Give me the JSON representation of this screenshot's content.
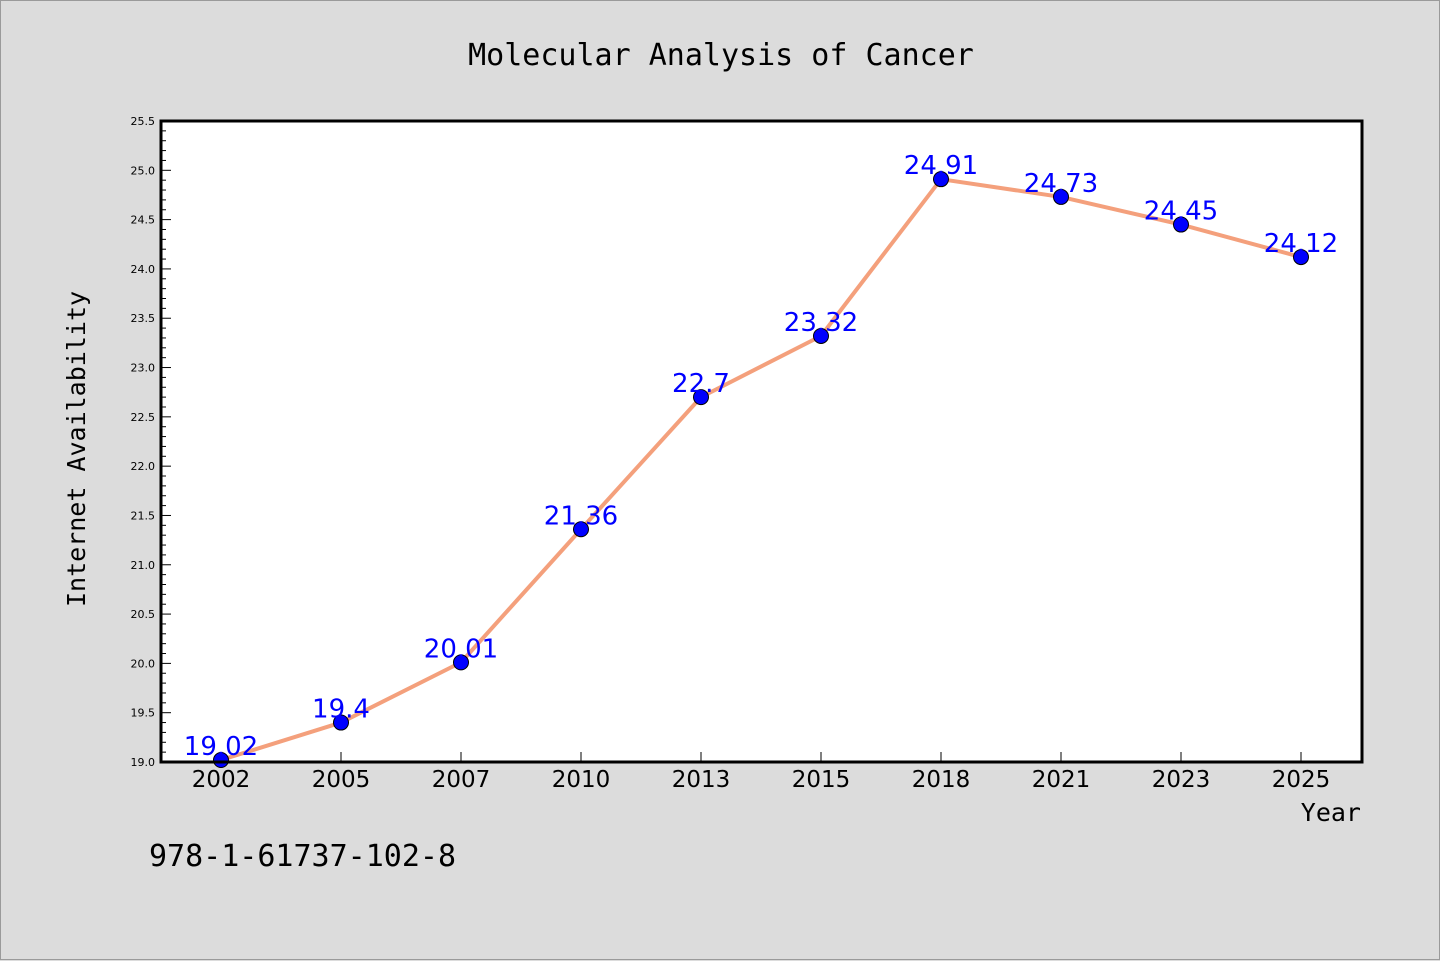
{
  "chart_data": {
    "type": "line",
    "title": "Molecular Analysis of Cancer",
    "xlabel": "Year",
    "ylabel": "Internet Availability",
    "categories": [
      "2002",
      "2005",
      "2007",
      "2010",
      "2013",
      "2015",
      "2018",
      "2021",
      "2023",
      "2025"
    ],
    "series": [
      {
        "values": [
          19.02,
          19.4,
          20.01,
          21.36,
          22.7,
          23.32,
          24.91,
          24.73,
          24.45,
          24.12
        ],
        "data_labels": [
          "19.02",
          "19.4",
          "20.01",
          "21.36",
          "22.7",
          "23.32",
          "24.91",
          "24.73",
          "24.45",
          "24.12"
        ],
        "line_color": "#f4a07c",
        "marker_color": "#0000ff"
      }
    ],
    "ylim": [
      19.0,
      25.5
    ],
    "yticks": [
      "19.0",
      "19.5",
      "20.0",
      "20.5",
      "21.0",
      "21.5",
      "22.0",
      "22.5",
      "23.0",
      "23.5",
      "24.0",
      "24.5",
      "25.0",
      "25.5"
    ],
    "grid": false,
    "legend": "none"
  },
  "annotation": "978-1-61737-102-8",
  "colors": {
    "background": "#dcdcdc",
    "plot_background": "#ffffff",
    "label_color": "#0000ff"
  }
}
